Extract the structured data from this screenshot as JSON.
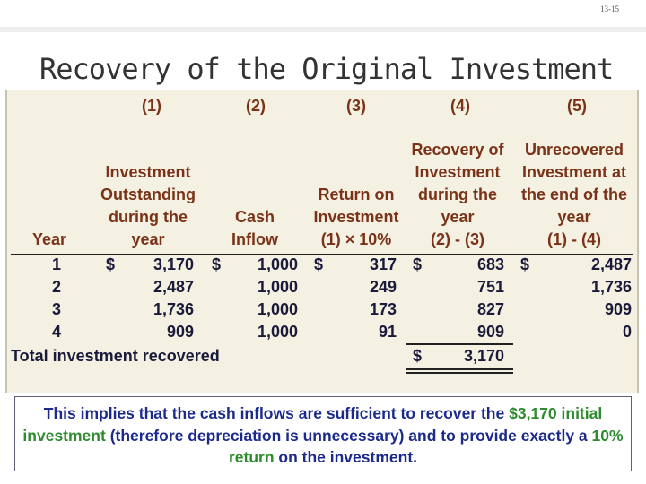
{
  "slide_number": "13-15",
  "title": "Recovery of the Original Investment",
  "table": {
    "column_numbers": [
      "(1)",
      "(2)",
      "(3)",
      "(4)",
      "(5)"
    ],
    "headers": {
      "year": "Year",
      "col1": [
        "Investment",
        "Outstanding",
        "during the",
        "year"
      ],
      "col2": [
        "Cash",
        "Inflow"
      ],
      "col3": [
        "Return on",
        "Investment",
        "(1) × 10%"
      ],
      "col4": [
        "Recovery of",
        "Investment",
        "during the",
        "year",
        "(2) - (3)"
      ],
      "col5": [
        "Unrecovered",
        "Investment at",
        "the end of the",
        "year",
        "(1) - (4)"
      ]
    },
    "currency": "$",
    "rows": [
      {
        "year": "1",
        "outstanding": "3,170",
        "inflow": "1,000",
        "return": "317",
        "recovery": "683",
        "unrecovered": "2,487"
      },
      {
        "year": "2",
        "outstanding": "2,487",
        "inflow": "1,000",
        "return": "249",
        "recovery": "751",
        "unrecovered": "1,736"
      },
      {
        "year": "3",
        "outstanding": "1,736",
        "inflow": "1,000",
        "return": "173",
        "recovery": "827",
        "unrecovered": "909"
      },
      {
        "year": "4",
        "outstanding": "909",
        "inflow": "1,000",
        "return": "91",
        "recovery": "909",
        "unrecovered": "0"
      }
    ],
    "total_label": "Total investment recovered",
    "total_value": "3,170"
  },
  "note": {
    "part1": "This implies that the cash inflows are sufficient to recover the",
    "amount": "$3,170",
    "part2": "initial investment",
    "part3": "(therefore depreciation is unnecessary) and to provide exactly a",
    "rate": "10% return",
    "part4": "on the investment."
  },
  "colors": {
    "header_text": "#7a3318",
    "body_text": "#1a1a3a",
    "table_background": "#f4f0e2",
    "note_text": "#1b2a8c",
    "note_highlight": "#2e8b2e"
  }
}
